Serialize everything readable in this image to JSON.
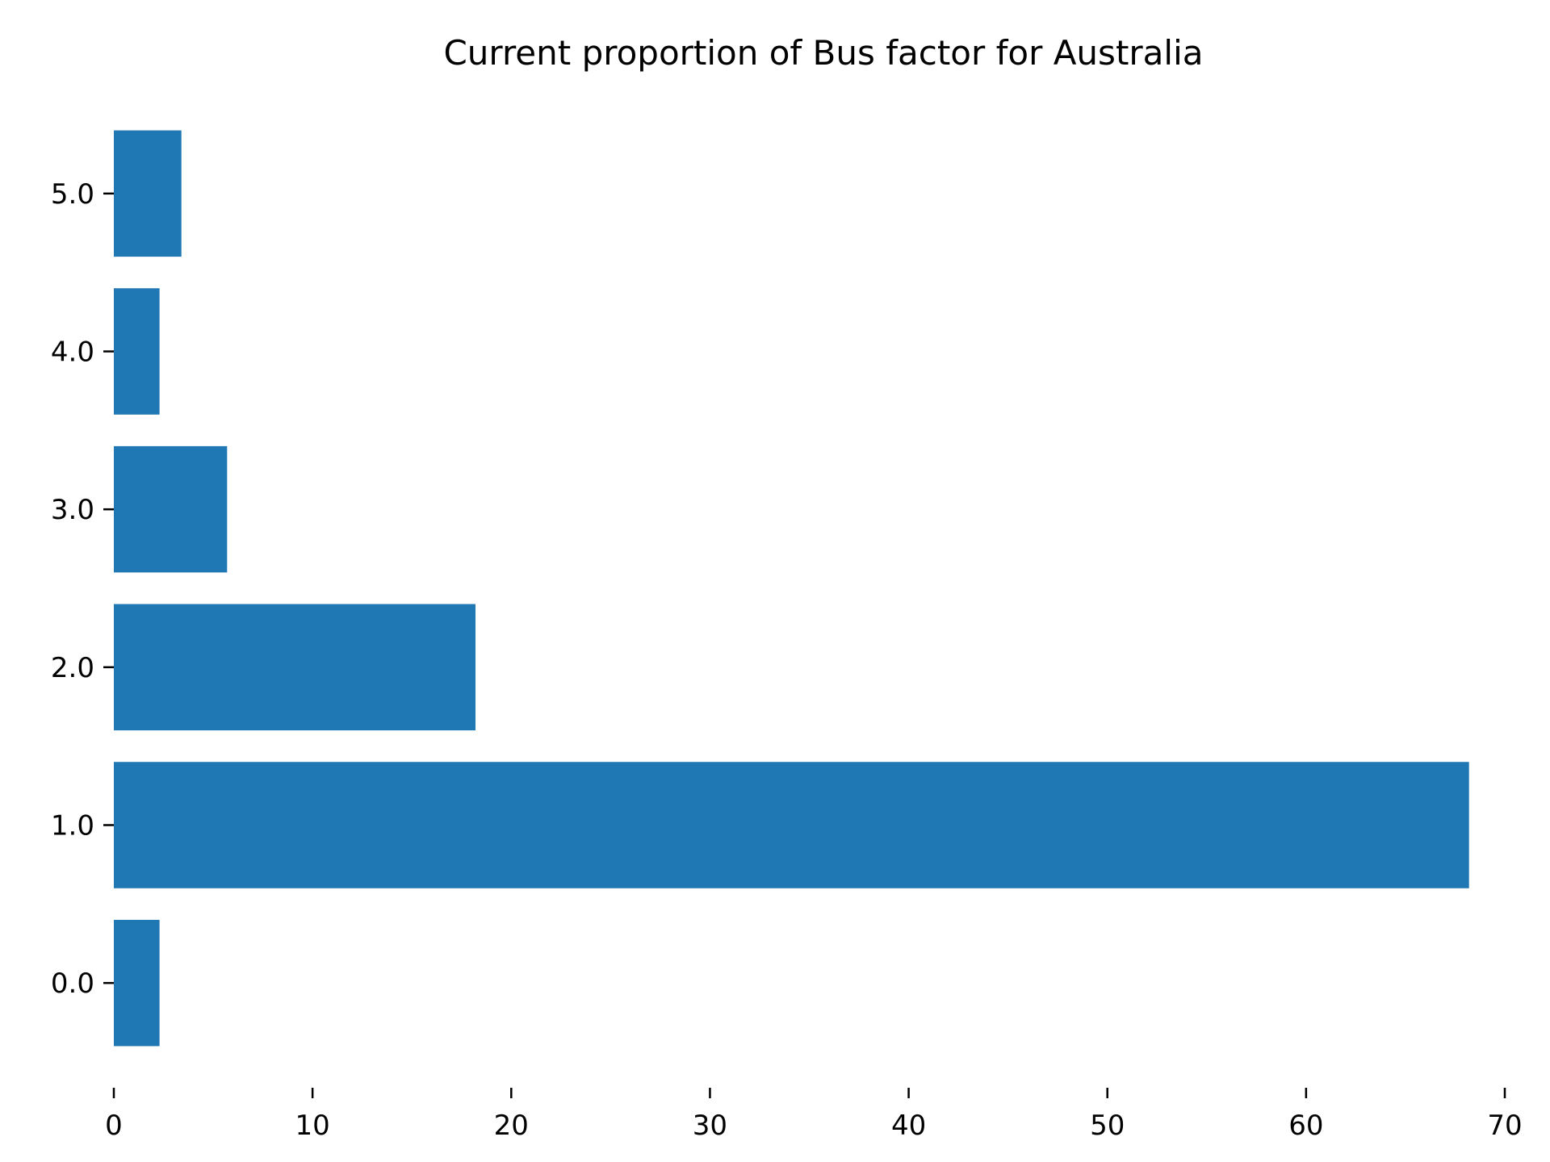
{
  "chart_data": {
    "type": "bar",
    "orientation": "horizontal",
    "title": "Current proportion of Bus factor for Australia",
    "xlabel": "",
    "ylabel": "",
    "categories": [
      "0.0",
      "1.0",
      "2.0",
      "3.0",
      "4.0",
      "5.0"
    ],
    "y_values": [
      0,
      1,
      2,
      3,
      4,
      5
    ],
    "values": [
      2.3,
      68.2,
      18.2,
      5.7,
      2.3,
      3.4
    ],
    "xlim": [
      0,
      70
    ],
    "ylim": [
      -0.5,
      5.5
    ],
    "xticks": [
      0,
      10,
      20,
      30,
      40,
      50,
      60,
      70
    ],
    "xtick_labels": [
      "0",
      "10",
      "20",
      "30",
      "40",
      "50",
      "60",
      "70"
    ],
    "bar_color": "#1f77b4",
    "grid": false,
    "legend": "none"
  }
}
